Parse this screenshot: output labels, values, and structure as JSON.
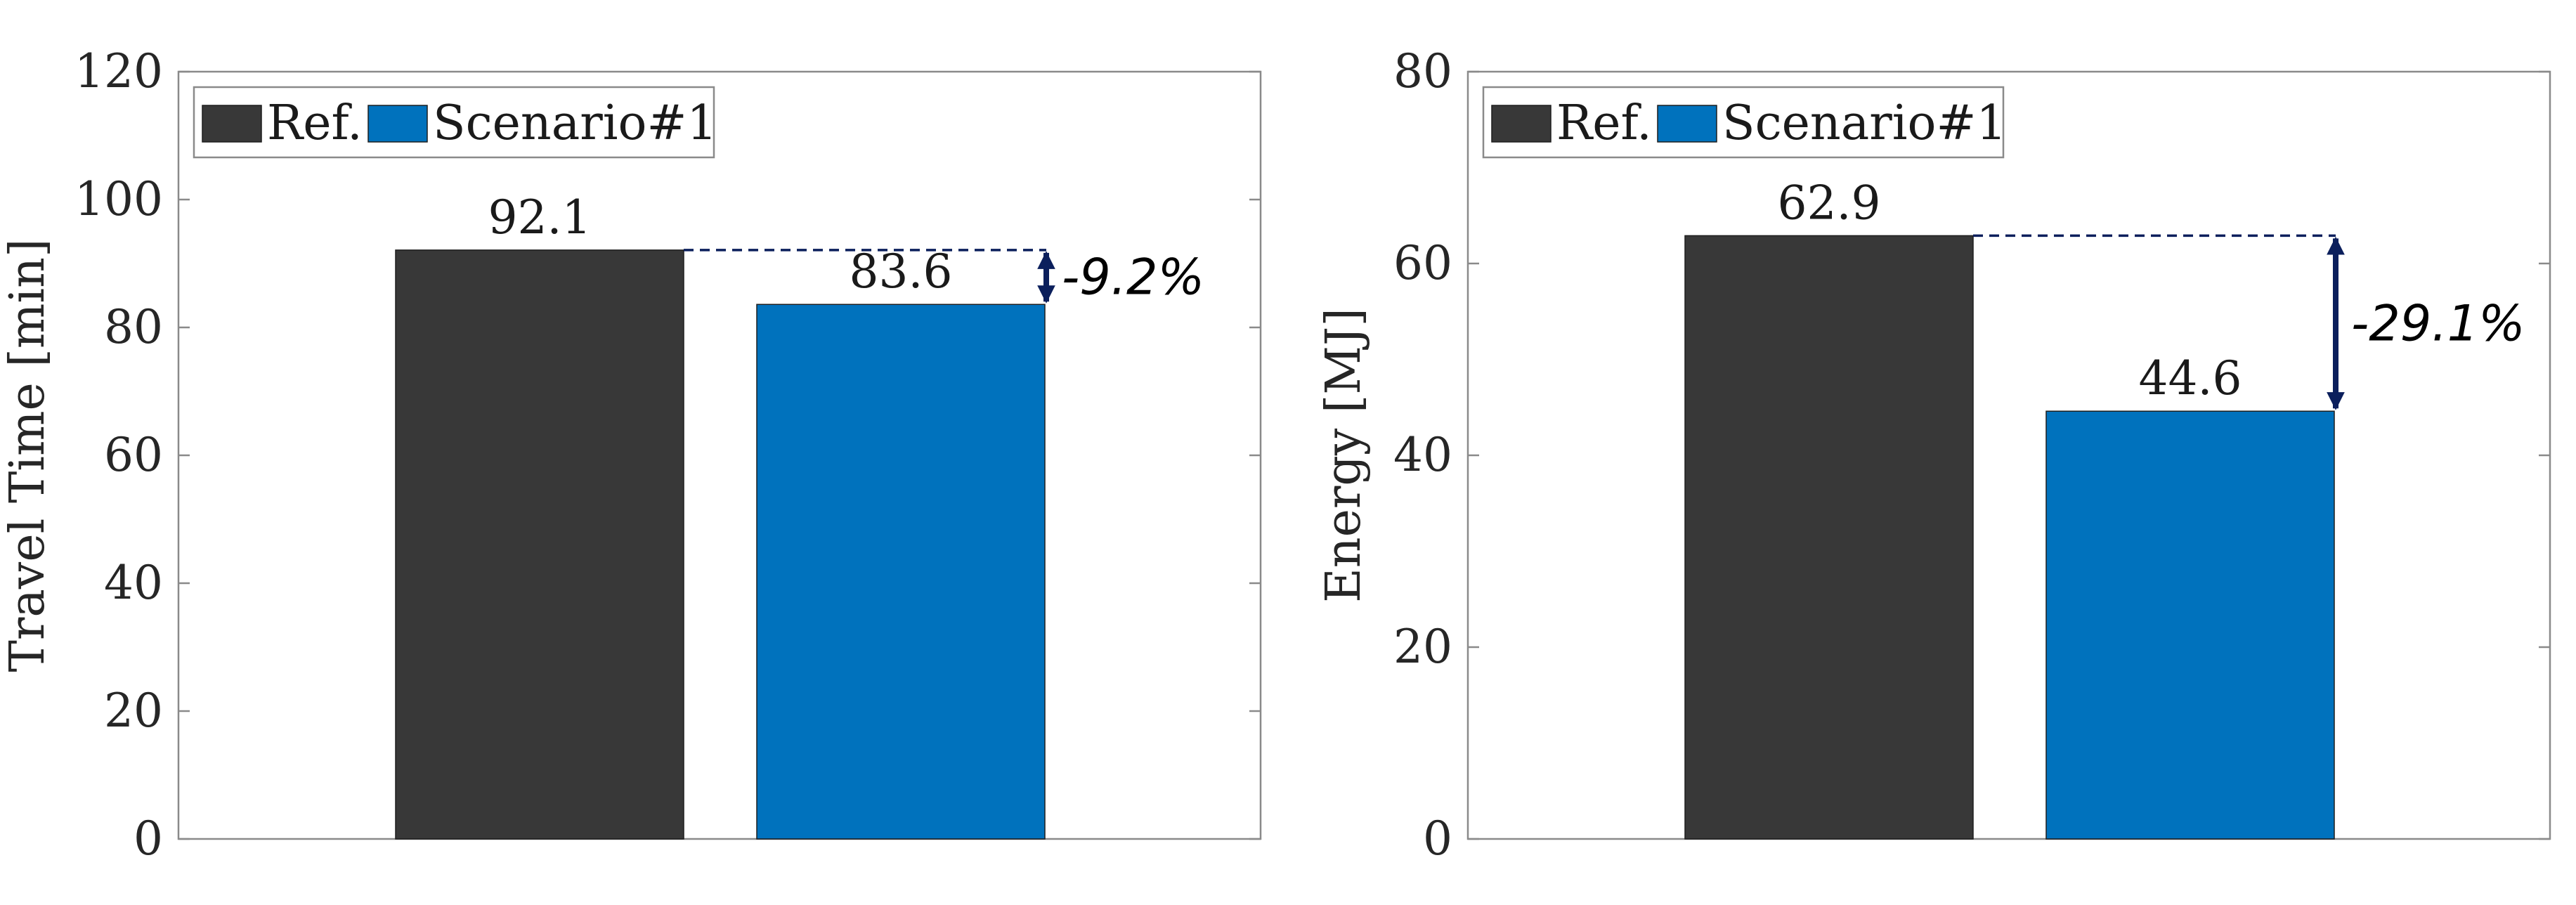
{
  "chart_data": [
    {
      "type": "bar",
      "categories": [
        "Ref.",
        "Scenario#1"
      ],
      "values": [
        92.1,
        83.6
      ],
      "data_labels": [
        "92.1",
        "83.6"
      ],
      "colors": [
        "#383838",
        "#0072bd"
      ],
      "ylabel": "Travel Time [min]",
      "ylim": [
        0,
        120
      ],
      "yticks": [
        0,
        20,
        40,
        60,
        80,
        100,
        120
      ],
      "legend": {
        "placement": "top-left",
        "entries": [
          "Ref.",
          "Scenario#1"
        ]
      },
      "grid": false,
      "annotation": {
        "text": "-9.2%",
        "from": 92.1,
        "to": 83.6,
        "color": "#0b1f5c"
      }
    },
    {
      "type": "bar",
      "categories": [
        "Ref.",
        "Scenario#1"
      ],
      "values": [
        62.9,
        44.6
      ],
      "data_labels": [
        "62.9",
        "44.6"
      ],
      "colors": [
        "#383838",
        "#0072bd"
      ],
      "ylabel": "Energy [MJ]",
      "ylim": [
        0,
        80
      ],
      "yticks": [
        0,
        20,
        40,
        60,
        80
      ],
      "legend": {
        "placement": "top-left",
        "entries": [
          "Ref.",
          "Scenario#1"
        ]
      },
      "grid": false,
      "annotation": {
        "text": "-29.1%",
        "from": 62.9,
        "to": 44.6,
        "color": "#0b1f5c"
      }
    }
  ]
}
